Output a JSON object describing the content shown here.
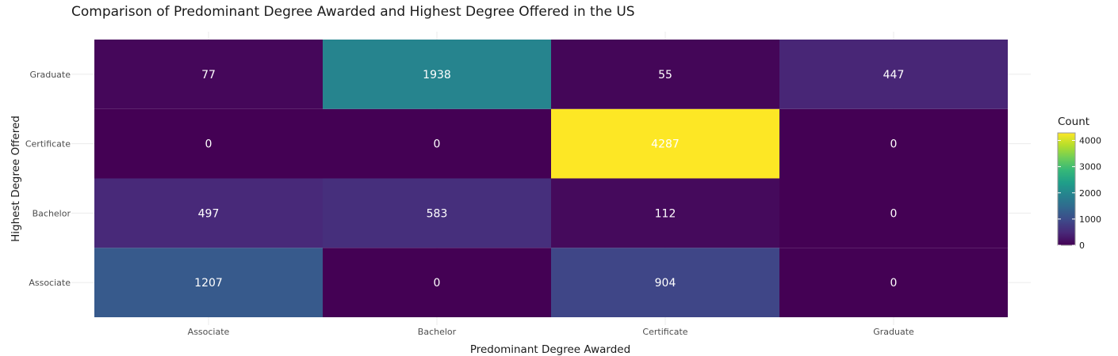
{
  "chart_data": {
    "type": "heatmap",
    "title": "Comparison of Predominant Degree Awarded and Highest Degree Offered in the US",
    "xlabel": "Predominant Degree Awarded",
    "ylabel": "Highest Degree Offered",
    "x_categories": [
      "Associate",
      "Bachelor",
      "Certificate",
      "Graduate"
    ],
    "y_categories": [
      "Associate",
      "Bachelor",
      "Certificate",
      "Graduate"
    ],
    "values": [
      [
        1207,
        0,
        904,
        0
      ],
      [
        497,
        583,
        112,
        0
      ],
      [
        0,
        0,
        4287,
        0
      ],
      [
        77,
        1938,
        55,
        447
      ]
    ],
    "colorscale": "viridis",
    "zlim": [
      0,
      4287
    ],
    "legend": {
      "title": "Count",
      "ticks": [
        0,
        1000,
        2000,
        3000,
        4000
      ],
      "placement": "right"
    },
    "grid": true
  }
}
